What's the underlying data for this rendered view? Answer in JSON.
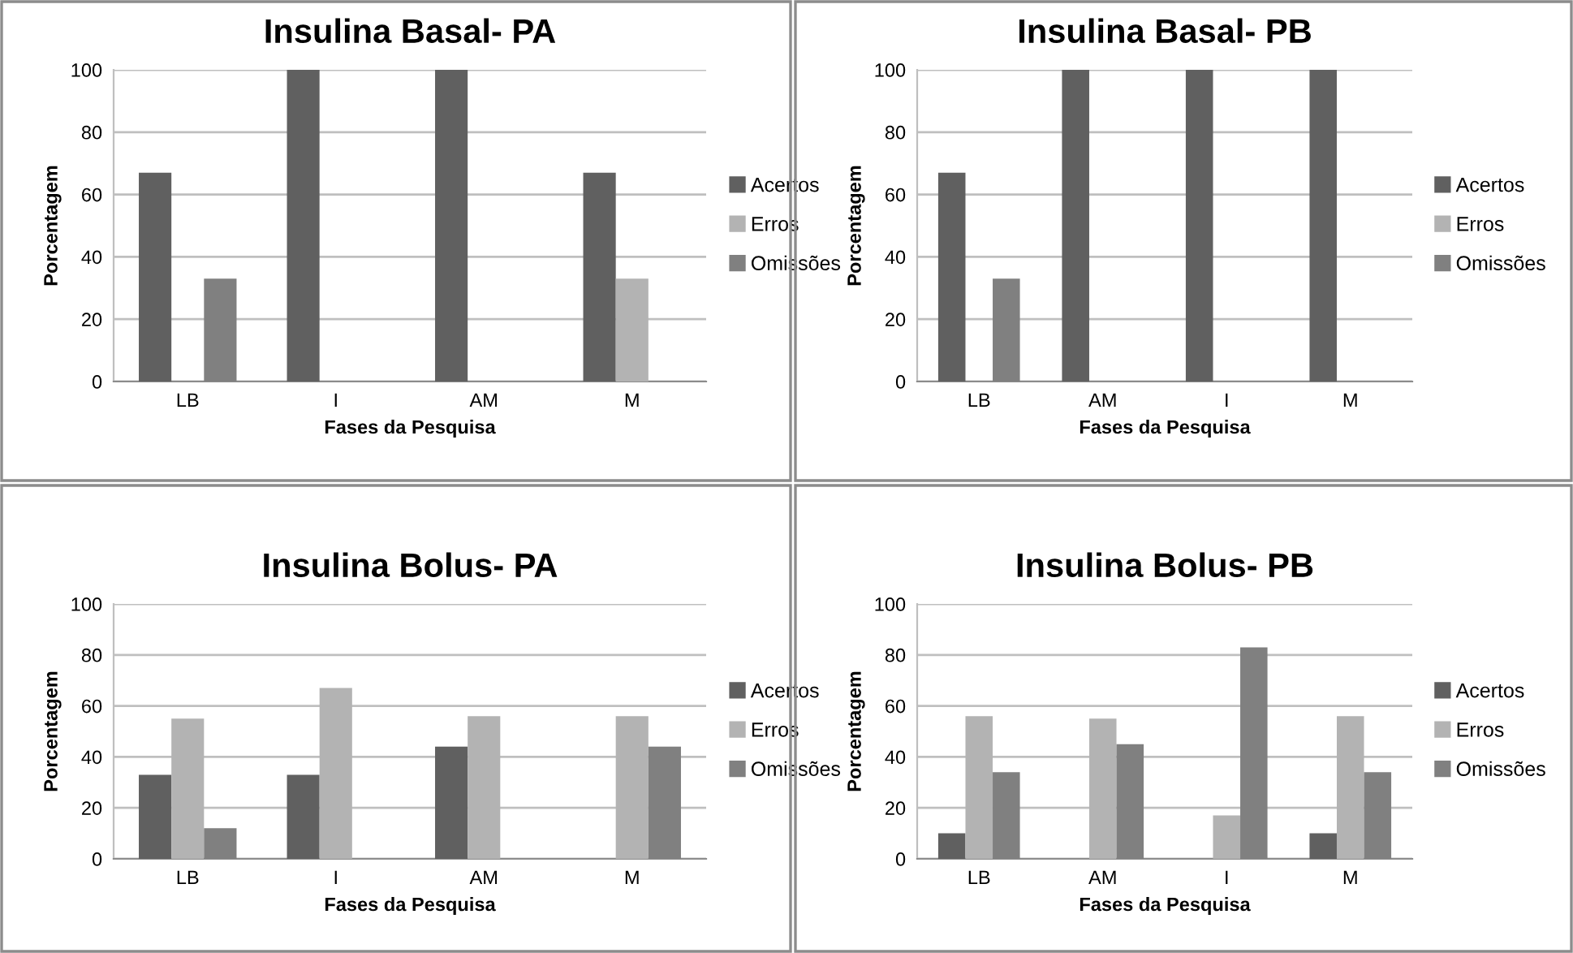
{
  "chart_data": [
    {
      "type": "bar",
      "title": "Insulina Basal- PA",
      "xlabel": "Fases da Pesquisa",
      "ylabel": "Porcentagem",
      "categories": [
        "LB",
        "I",
        "AM",
        "M"
      ],
      "ylim": [
        0,
        100
      ],
      "yticks": [
        0,
        20,
        40,
        60,
        80,
        100
      ],
      "grid": "y",
      "legend": "right",
      "series": [
        {
          "name": "Acertos",
          "color": "#606060",
          "values": [
            67,
            100,
            100,
            67
          ]
        },
        {
          "name": "Erros",
          "color": "#b3b3b3",
          "values": [
            0,
            0,
            0,
            33
          ]
        },
        {
          "name": "Omissões",
          "color": "#808080",
          "values": [
            33,
            0,
            0,
            0
          ]
        }
      ]
    },
    {
      "type": "bar",
      "title": "Insulina Basal- PB",
      "xlabel": "Fases da Pesquisa",
      "ylabel": "Porcentagem",
      "categories": [
        "LB",
        "AM",
        "I",
        "M"
      ],
      "ylim": [
        0,
        100
      ],
      "yticks": [
        0,
        20,
        40,
        60,
        80,
        100
      ],
      "grid": "y",
      "legend": "right",
      "series": [
        {
          "name": "Acertos",
          "color": "#606060",
          "values": [
            67,
            100,
            100,
            100
          ]
        },
        {
          "name": "Erros",
          "color": "#b3b3b3",
          "values": [
            0,
            0,
            0,
            0
          ]
        },
        {
          "name": "Omissões",
          "color": "#808080",
          "values": [
            33,
            0,
            0,
            0
          ]
        }
      ]
    },
    {
      "type": "bar",
      "title": "Insulina Bolus- PA",
      "xlabel": "Fases da Pesquisa",
      "ylabel": "Porcentagem",
      "categories": [
        "LB",
        "I",
        "AM",
        "M"
      ],
      "ylim": [
        0,
        100
      ],
      "yticks": [
        0,
        20,
        40,
        60,
        80,
        100
      ],
      "grid": "y",
      "legend": "right",
      "series": [
        {
          "name": "Acertos",
          "color": "#606060",
          "values": [
            33,
            33,
            44,
            0
          ]
        },
        {
          "name": "Erros",
          "color": "#b3b3b3",
          "values": [
            55,
            67,
            56,
            56
          ]
        },
        {
          "name": "Omissões",
          "color": "#808080",
          "values": [
            12,
            0,
            0,
            44
          ]
        }
      ]
    },
    {
      "type": "bar",
      "title": "Insulina Bolus- PB",
      "xlabel": "Fases da Pesquisa",
      "ylabel": "Porcentagem",
      "categories": [
        "LB",
        "AM",
        "I",
        "M"
      ],
      "ylim": [
        0,
        100
      ],
      "yticks": [
        0,
        20,
        40,
        60,
        80,
        100
      ],
      "grid": "y",
      "legend": "right",
      "series": [
        {
          "name": "Acertos",
          "color": "#606060",
          "values": [
            10,
            0,
            0,
            10
          ]
        },
        {
          "name": "Erros",
          "color": "#b3b3b3",
          "values": [
            56,
            55,
            17,
            56
          ]
        },
        {
          "name": "Omissões",
          "color": "#808080",
          "values": [
            34,
            45,
            83,
            34
          ]
        }
      ]
    }
  ]
}
